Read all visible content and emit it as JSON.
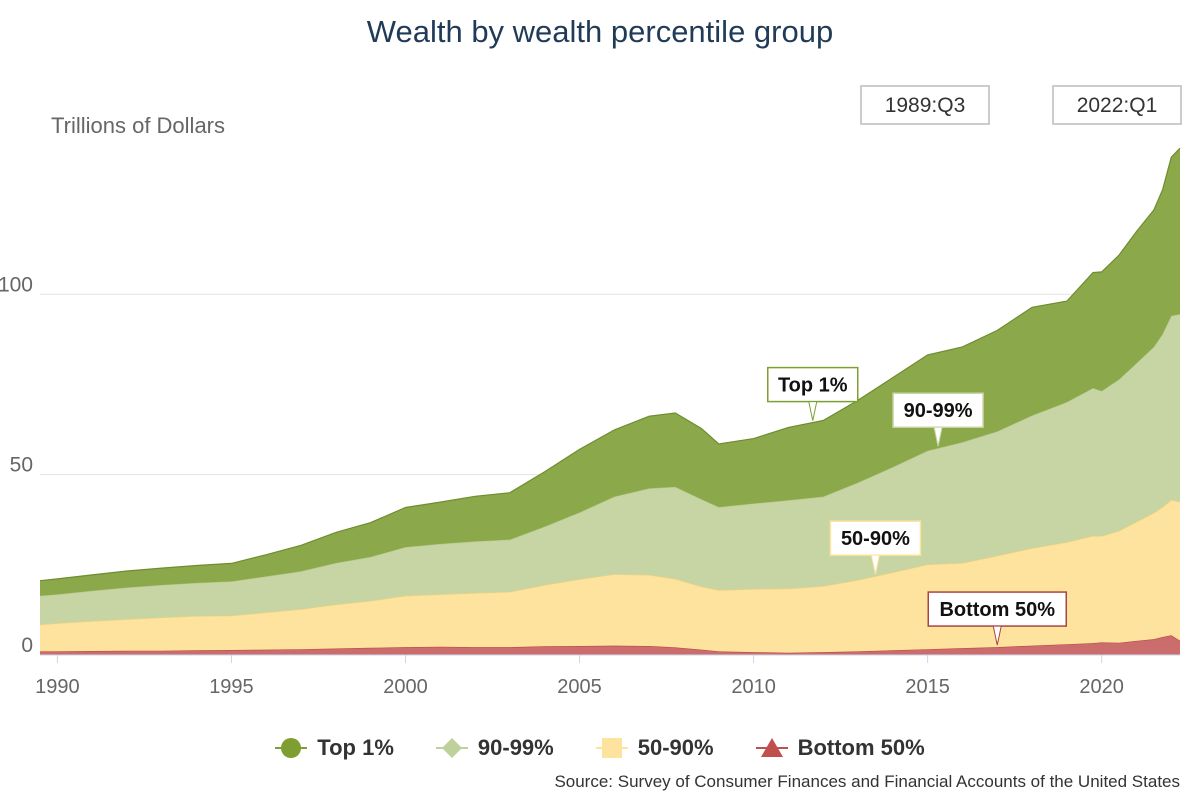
{
  "title": "Wealth by wealth percentile group",
  "unit_label": "Trillions of Dollars",
  "range": {
    "start": "1989:Q3",
    "end": "2022:Q1"
  },
  "source": "Source: Survey of Consumer Finances and Financial Accounts of the United States",
  "colors": {
    "top1": "#8ba94a",
    "p90_99": "#c7d5a4",
    "p50_90": "#fde39e",
    "bottom50": "#cc6d6d"
  },
  "chart_data": {
    "type": "area",
    "stacked": true,
    "ylabel": "Trillions of Dollars",
    "ylim": [
      0,
      140
    ],
    "yticks": [
      "0",
      "50",
      "100"
    ],
    "xlim": [
      1989.5,
      2022.25
    ],
    "xticks": [
      "1990",
      "1995",
      "2000",
      "2005",
      "2010",
      "2015",
      "2020"
    ],
    "grid": true,
    "legend_position": "bottom",
    "x": [
      1989.5,
      1990,
      1991,
      1992,
      1993,
      1994,
      1995,
      1996,
      1997,
      1998,
      1999,
      2000,
      2001,
      2002,
      2003,
      2004,
      2005,
      2006,
      2007,
      2007.75,
      2008.5,
      2009,
      2010,
      2011,
      2012,
      2013,
      2014,
      2015,
      2016,
      2017,
      2018,
      2019,
      2019.75,
      2020,
      2020.5,
      2021,
      2021.5,
      2021.75,
      2022,
      2022.25
    ],
    "series": [
      {
        "name": "Bottom 50%",
        "values": [
          1.0,
          1.0,
          1.1,
          1.2,
          1.2,
          1.3,
          1.4,
          1.5,
          1.6,
          1.8,
          2.0,
          2.2,
          2.3,
          2.2,
          2.2,
          2.4,
          2.5,
          2.6,
          2.5,
          2.1,
          1.5,
          1.0,
          0.8,
          0.6,
          0.8,
          1.0,
          1.3,
          1.6,
          1.9,
          2.2,
          2.6,
          3.0,
          3.3,
          3.5,
          3.4,
          3.9,
          4.4,
          5.0,
          5.5,
          4.0
        ]
      },
      {
        "name": "50-90%",
        "values": [
          7.4,
          7.8,
          8.3,
          8.7,
          9.2,
          9.5,
          9.5,
          10.3,
          11.1,
          12.2,
          13.0,
          14.2,
          14.5,
          15.0,
          15.3,
          17.0,
          18.5,
          19.8,
          19.7,
          19.0,
          17.5,
          17.0,
          17.5,
          17.8,
          18.3,
          19.8,
          21.6,
          23.5,
          23.6,
          25.3,
          27.0,
          28.3,
          29.7,
          29.5,
          31.0,
          33.0,
          35.0,
          36.0,
          37.5,
          38.5
        ]
      },
      {
        "name": "90-99%",
        "values": [
          8.0,
          8.0,
          8.4,
          8.8,
          9.0,
          9.2,
          9.5,
          10.0,
          10.5,
          11.5,
          12.2,
          13.5,
          14.0,
          14.3,
          14.5,
          16.2,
          18.5,
          21.5,
          24.0,
          25.5,
          24.2,
          23.0,
          23.7,
          24.5,
          24.8,
          27.0,
          29.2,
          31.5,
          33.5,
          34.5,
          36.8,
          38.8,
          41.0,
          40.2,
          42.0,
          44.0,
          46.0,
          48.0,
          51.0,
          52.0
        ]
      },
      {
        "name": "Top 1%",
        "values": [
          4.2,
          4.3,
          4.4,
          4.6,
          4.7,
          4.8,
          5.0,
          6.0,
          7.2,
          8.5,
          9.5,
          11.0,
          11.6,
          12.5,
          13.0,
          15.2,
          17.5,
          18.5,
          20.0,
          20.5,
          19.6,
          17.5,
          18.0,
          20.2,
          21.1,
          22.8,
          24.8,
          26.6,
          26.4,
          28.0,
          30.0,
          28.0,
          32.0,
          33.0,
          34.5,
          36.5,
          38.0,
          40.0,
          44.0,
          46.0
        ]
      }
    ],
    "annotations": [
      {
        "label": "Top 1%",
        "series": "Top 1%",
        "x": 2011.7
      },
      {
        "label": "90-99%",
        "series": "90-99%",
        "x": 2015.3
      },
      {
        "label": "50-90%",
        "series": "50-90%",
        "x": 2013.5
      },
      {
        "label": "Bottom 50%",
        "series": "Bottom 50%",
        "x": 2017.0
      }
    ]
  },
  "legend": [
    {
      "label": "Top 1%",
      "marker": "circle",
      "color": "#7e9e32"
    },
    {
      "label": "90-99%",
      "marker": "diamond",
      "color": "#bfd19a"
    },
    {
      "label": "50-90%",
      "marker": "square",
      "color": "#fde39e"
    },
    {
      "label": "Bottom 50%",
      "marker": "triangle",
      "color": "#c0504d"
    }
  ]
}
